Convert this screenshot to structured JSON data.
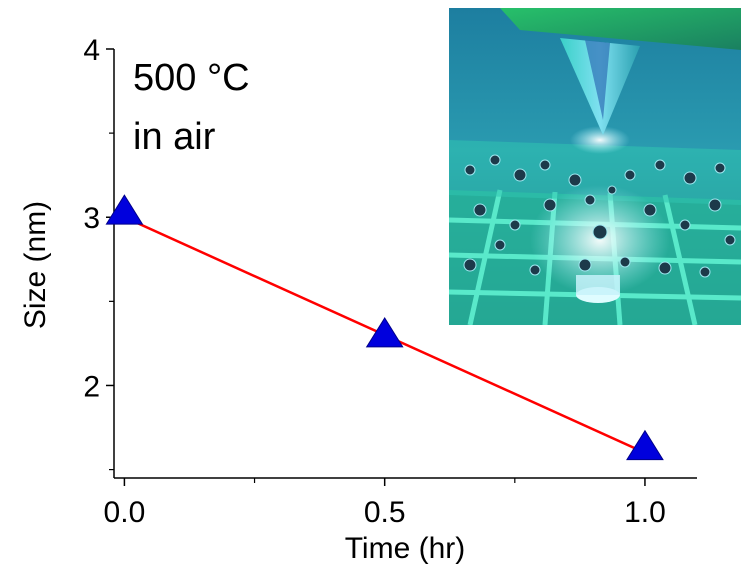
{
  "chart_data": {
    "type": "scatter",
    "title": "",
    "annotation": [
      "500 °C",
      "in air"
    ],
    "xlabel": "Time (hr)",
    "ylabel": "Size (nm)",
    "xlim": [
      -0.02,
      1.1
    ],
    "ylim": [
      1.45,
      4.0
    ],
    "xticks": [
      0.0,
      0.5,
      1.0
    ],
    "xtick_labels": [
      "0.0",
      "0.5",
      "1.0"
    ],
    "xminor": [
      0.25,
      0.75
    ],
    "yticks": [
      2,
      3,
      4
    ],
    "ytick_labels": [
      "2",
      "3",
      "4"
    ],
    "yminor": [
      1.5,
      2.5,
      3.5
    ],
    "grid": false,
    "series": [
      {
        "marker": "triangle",
        "color": "#0000dd",
        "x": [
          0.0,
          0.5,
          1.0
        ],
        "y": [
          3.03,
          2.3,
          1.63
        ]
      }
    ],
    "fit_line": {
      "color": "#ff0000",
      "x": [
        0.0,
        1.0
      ],
      "y": [
        3.0,
        1.6
      ]
    },
    "inset": {
      "description_icon": "afm-tip-nanoparticle-illustration"
    }
  }
}
